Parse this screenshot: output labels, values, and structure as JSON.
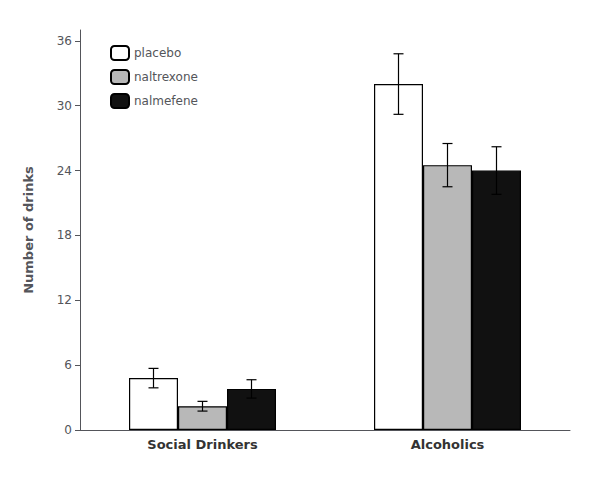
{
  "chart_data": {
    "type": "bar",
    "categories": [
      "Social Drinkers",
      "Alcoholics"
    ],
    "series": [
      {
        "name": "placebo",
        "color": "#ffffff",
        "values": [
          4.8,
          32.0
        ],
        "errors": [
          0.9,
          2.8
        ]
      },
      {
        "name": "naltrexone",
        "color": "#b8b8b8",
        "values": [
          2.2,
          24.5
        ],
        "errors": [
          0.45,
          2.0
        ]
      },
      {
        "name": "nalmefene",
        "color": "#111111",
        "values": [
          3.8,
          24.0
        ],
        "errors": [
          0.85,
          2.2
        ]
      }
    ],
    "ylabel": "Number of drinks",
    "ylim": [
      0,
      37
    ],
    "yticks": [
      0,
      6,
      12,
      18,
      24,
      30,
      36
    ],
    "legend": "upper left",
    "grid": false
  }
}
